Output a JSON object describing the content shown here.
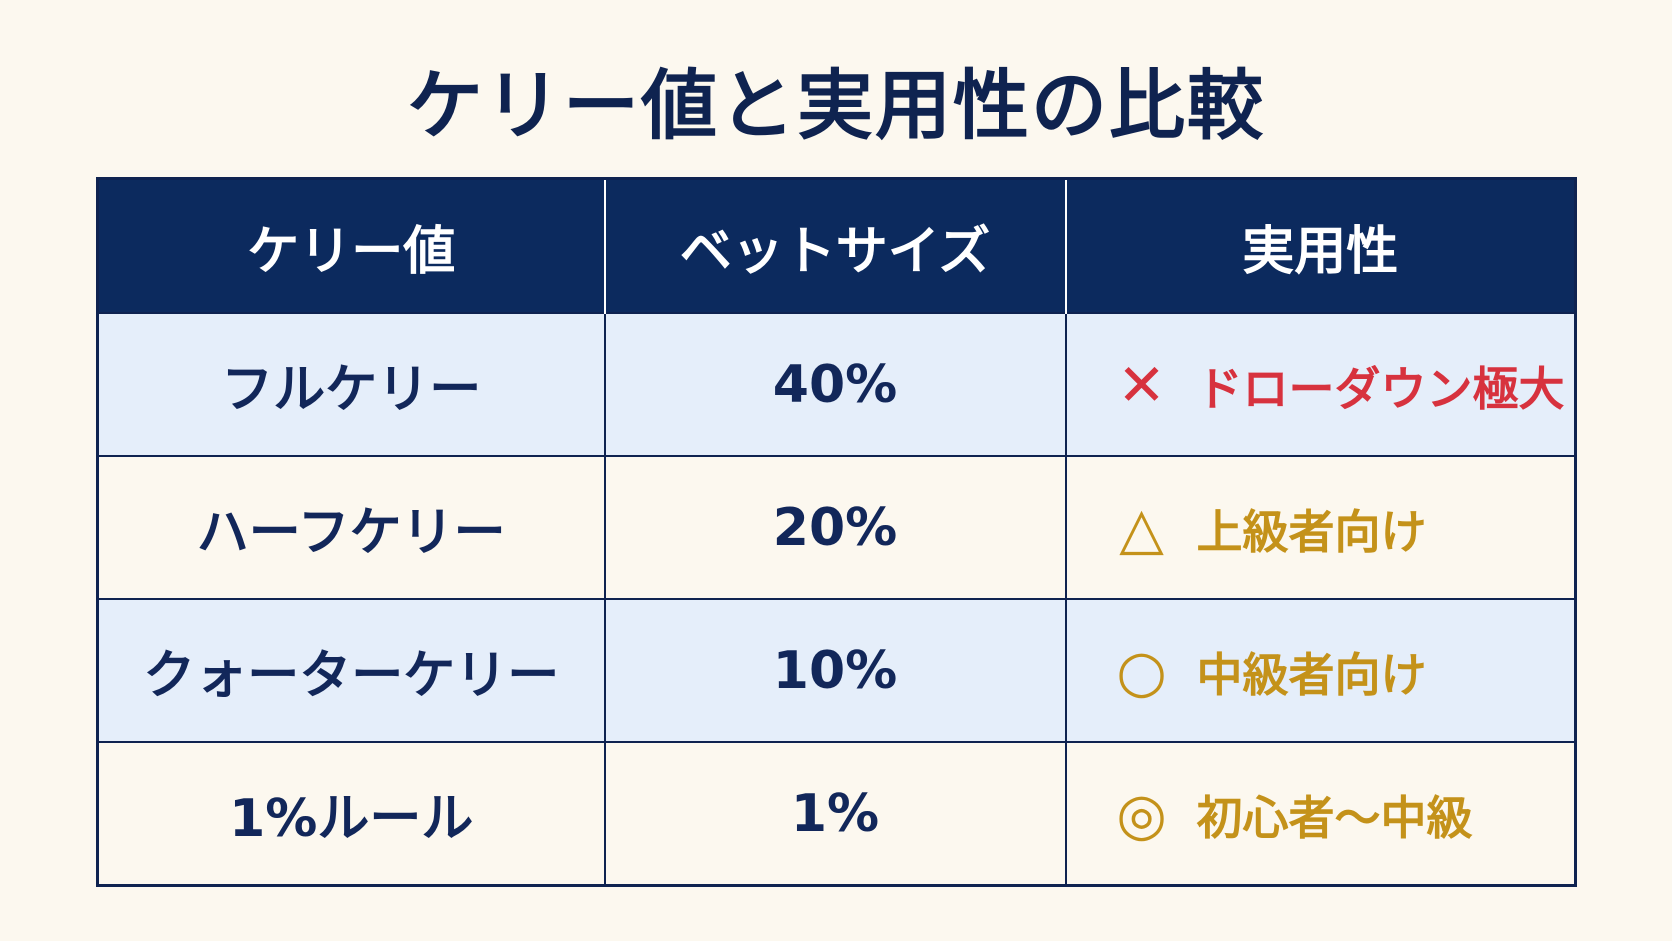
{
  "header": {
    "title": "ケリー値と実用性の比較"
  },
  "table": {
    "columns": [
      "ケリー値",
      "ベットサイズ",
      "実用性"
    ],
    "rows": [
      [
        "フルケリー",
        "40%",
        {
          "symbol": "✕",
          "label": "ドローダウン極大"
        }
      ],
      [
        "ハーフケリー",
        "20%",
        {
          "symbol": "△",
          "label": "上級者向け"
        }
      ],
      [
        "クォーターケリー",
        "10%",
        {
          "symbol": "○",
          "label": "中級者向け"
        }
      ],
      [
        "1%ルール",
        "1%",
        {
          "symbol": "◎",
          "label": "初心者〜中級"
        }
      ]
    ]
  }
}
